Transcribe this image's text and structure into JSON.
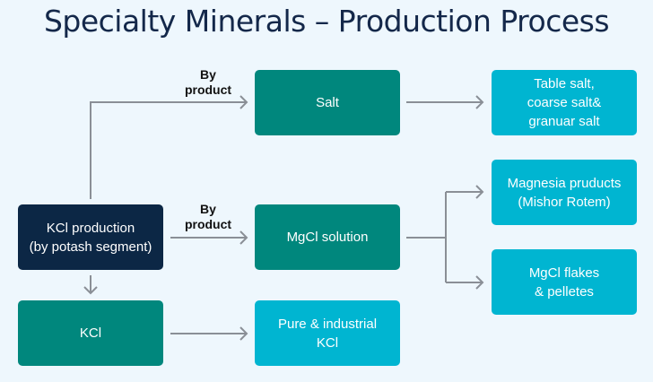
{
  "title": "Specialty Minerals – Production Process",
  "nodes": {
    "kcl_production": "KCl production\n(by potash segment)",
    "salt": "Salt",
    "mgcl_solution": "MgCl solution",
    "kcl": "KCl",
    "pure_kcl": "Pure & industrial\nKCl",
    "table_salt": "Table salt,\ncoarse salt&\ngranuar salt",
    "magnesia": "Magnesia pruducts\n(Mishor Rotem)",
    "mgcl_flakes": "MgCl flakes\n& pelletes"
  },
  "edge_labels": {
    "to_salt": "By\nproduct",
    "to_mgcl": "By\nproduct"
  },
  "colors": {
    "navy": "#0c2745",
    "teal": "#00877d",
    "cyan": "#00b5d1",
    "arrow": "#8a8f96",
    "background": "#eef7fd"
  }
}
